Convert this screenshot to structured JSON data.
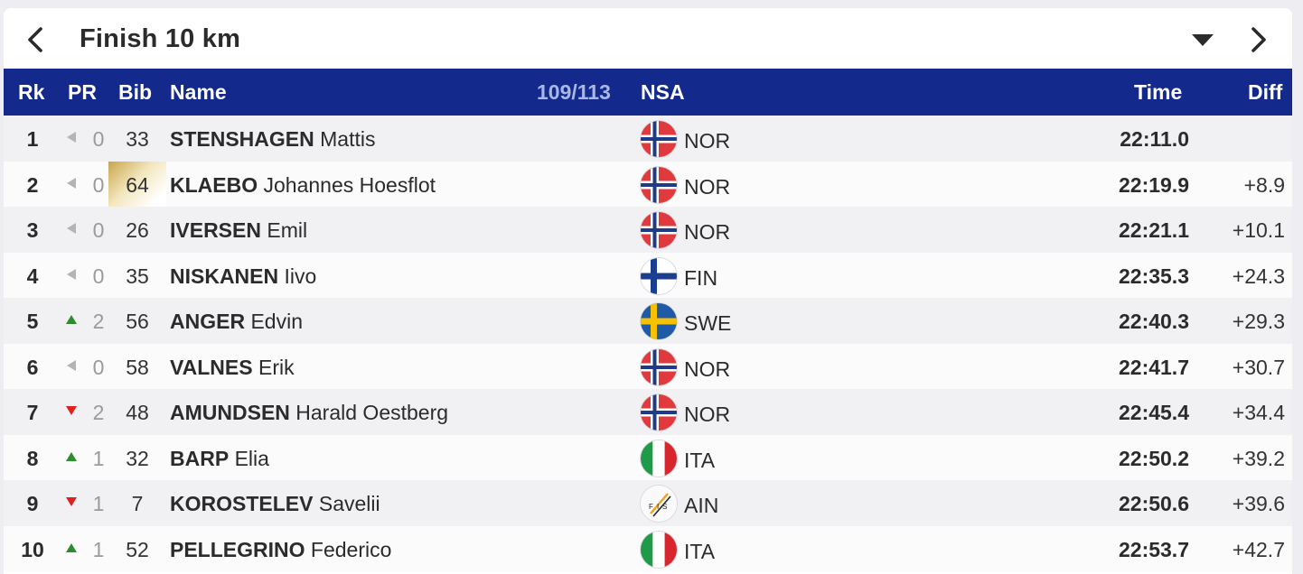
{
  "header": {
    "title": "Finish 10 km"
  },
  "columns": {
    "rk": "Rk",
    "pr": "PR",
    "bib": "Bib",
    "name": "Name",
    "count": "109/113",
    "nsa": "NSA",
    "time": "Time",
    "diff": "Diff"
  },
  "colors": {
    "header_bg": "#132a8c",
    "arrow_up": "#2e8b2e",
    "arrow_down": "#e02020",
    "arrow_same": "#b4b4b4",
    "bib_leader_gold": "#c9a64a"
  },
  "rows": [
    {
      "rank": "1",
      "pr_trend": "same",
      "pr": "0",
      "bib": "33",
      "bib_highlight": false,
      "last": "STENSHAGEN",
      "first": "Mattis",
      "nsa": "NOR",
      "flag": "norway-flag-icon",
      "time": "22:11.0",
      "diff": ""
    },
    {
      "rank": "2",
      "pr_trend": "same",
      "pr": "0",
      "bib": "64",
      "bib_highlight": true,
      "last": "KLAEBO",
      "first": "Johannes Hoesflot",
      "nsa": "NOR",
      "flag": "norway-flag-icon",
      "time": "22:19.9",
      "diff": "+8.9"
    },
    {
      "rank": "3",
      "pr_trend": "same",
      "pr": "0",
      "bib": "26",
      "bib_highlight": false,
      "last": "IVERSEN",
      "first": "Emil",
      "nsa": "NOR",
      "flag": "norway-flag-icon",
      "time": "22:21.1",
      "diff": "+10.1"
    },
    {
      "rank": "4",
      "pr_trend": "same",
      "pr": "0",
      "bib": "35",
      "bib_highlight": false,
      "last": "NISKANEN",
      "first": "Iivo",
      "nsa": "FIN",
      "flag": "finland-flag-icon",
      "time": "22:35.3",
      "diff": "+24.3"
    },
    {
      "rank": "5",
      "pr_trend": "up",
      "pr": "2",
      "bib": "56",
      "bib_highlight": false,
      "last": "ANGER",
      "first": "Edvin",
      "nsa": "SWE",
      "flag": "sweden-flag-icon",
      "time": "22:40.3",
      "diff": "+29.3"
    },
    {
      "rank": "6",
      "pr_trend": "same",
      "pr": "0",
      "bib": "58",
      "bib_highlight": false,
      "last": "VALNES",
      "first": "Erik",
      "nsa": "NOR",
      "flag": "norway-flag-icon",
      "time": "22:41.7",
      "diff": "+30.7"
    },
    {
      "rank": "7",
      "pr_trend": "down",
      "pr": "2",
      "bib": "48",
      "bib_highlight": false,
      "last": "AMUNDSEN",
      "first": "Harald Oestberg",
      "nsa": "NOR",
      "flag": "norway-flag-icon",
      "time": "22:45.4",
      "diff": "+34.4"
    },
    {
      "rank": "8",
      "pr_trend": "up",
      "pr": "1",
      "bib": "32",
      "bib_highlight": false,
      "last": "BARP",
      "first": "Elia",
      "nsa": "ITA",
      "flag": "italy-flag-icon",
      "time": "22:50.2",
      "diff": "+39.2"
    },
    {
      "rank": "9",
      "pr_trend": "down",
      "pr": "1",
      "bib": "7",
      "bib_highlight": false,
      "last": "KOROSTELEV",
      "first": "Savelii",
      "nsa": "AIN",
      "flag": "fis-logo-icon",
      "time": "22:50.6",
      "diff": "+39.6"
    },
    {
      "rank": "10",
      "pr_trend": "up",
      "pr": "1",
      "bib": "52",
      "bib_highlight": false,
      "last": "PELLEGRINO",
      "first": "Federico",
      "nsa": "ITA",
      "flag": "italy-flag-icon",
      "time": "22:53.7",
      "diff": "+42.7"
    }
  ]
}
